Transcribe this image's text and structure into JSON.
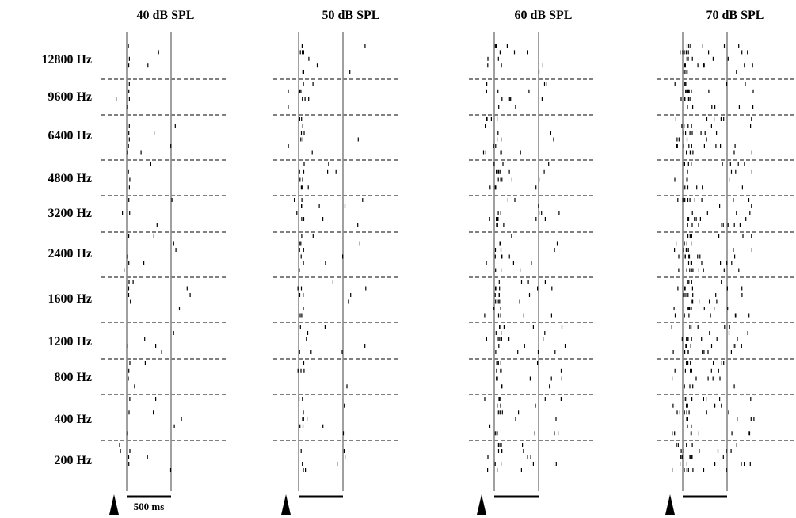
{
  "chart_data": {
    "type": "raster",
    "panels": [
      {
        "title": "40 dB SPL",
        "density": 0.45,
        "seed": 11
      },
      {
        "title": "50 dB SPL",
        "density": 0.6,
        "seed": 23
      },
      {
        "title": "60 dB SPL",
        "density": 1.0,
        "seed": 37
      },
      {
        "title": "70 dB SPL",
        "density": 1.8,
        "seed": 51
      }
    ],
    "frequencies": [
      "12800 Hz",
      "9600 Hz",
      "6400 Hz",
      "4800 Hz",
      "3200 Hz",
      "2400 Hz",
      "1600 Hz",
      "1200 Hz",
      "800 Hz",
      "400 Hz",
      "200 Hz"
    ],
    "stimulus_duration_ms": 500,
    "scale_bar_label": "500 ms",
    "grid_dividers": "dashed"
  }
}
